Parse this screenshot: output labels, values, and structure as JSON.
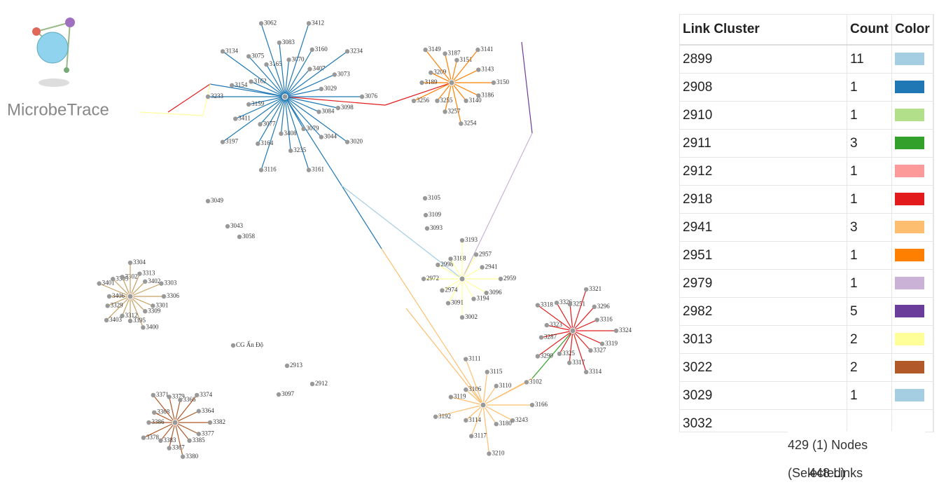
{
  "app": {
    "logo_text": "MicrobeTrace"
  },
  "network": {
    "clusters": [
      {
        "color": "#1f78b4",
        "nodes": [
          "3076",
          "3098",
          "3084",
          "3020",
          "3044",
          "3079",
          "3161",
          "3235",
          "3408",
          "3116",
          "3164",
          "3077",
          "3197",
          "3411",
          "3159",
          "3233",
          "3154",
          "3162",
          "3134",
          "3075",
          "3165",
          "3062",
          "3083",
          "3070",
          "3412",
          "3160",
          "3407",
          "3234",
          "3073",
          "3029"
        ]
      },
      {
        "color": "#ff7f00",
        "nodes": [
          "3150",
          "3186",
          "3140",
          "3254",
          "3257",
          "3255",
          "3256",
          "3189",
          "3209",
          "3149",
          "3187",
          "3151",
          "3141",
          "3143"
        ]
      },
      {
        "color": "#ffff99",
        "nodes": [
          "2959",
          "3096",
          "3194",
          "3002",
          "3091",
          "2974",
          "2972",
          "2998",
          "3188",
          "3193",
          "2957",
          "2941"
        ]
      },
      {
        "color": "#e31a1c",
        "nodes": [
          "3324",
          "3319",
          "3327",
          "3314",
          "3317",
          "3325",
          "3290",
          "3287",
          "3323",
          "3318",
          "3326",
          "3251",
          "3321",
          "3296",
          "3316"
        ]
      },
      {
        "color": "#c8a064",
        "nodes": [
          "3306",
          "3301",
          "3309",
          "3400",
          "3395",
          "3312",
          "3403",
          "3329",
          "3406",
          "3401",
          "3305",
          "3302",
          "3304",
          "3313",
          "3402",
          "3303"
        ]
      },
      {
        "color": "#b15928",
        "nodes": [
          "3382",
          "3377",
          "3385",
          "3380",
          "3367",
          "3383",
          "3378",
          "3386",
          "3368",
          "3371",
          "3379",
          "3366",
          "3374",
          "3364"
        ]
      },
      {
        "color": "#fdbf6f",
        "nodes": [
          "3166",
          "3243",
          "3180",
          "3210",
          "3117",
          "3114",
          "3192",
          "3119",
          "3106",
          "3111",
          "3115",
          "3110",
          "3102"
        ]
      }
    ],
    "labels": [
      "CG Ấn Độ",
      "3049",
      "3043",
      "3058",
      "2913",
      "2912",
      "3097",
      "3105",
      "3109",
      "3093"
    ]
  },
  "table": {
    "headers": [
      "Link Cluster",
      "Count",
      "Color"
    ],
    "rows": [
      {
        "cluster": "2899",
        "count": 11,
        "color": "#a6cee3"
      },
      {
        "cluster": "2908",
        "count": 1,
        "color": "#1f78b4"
      },
      {
        "cluster": "2910",
        "count": 1,
        "color": "#b2df8a"
      },
      {
        "cluster": "2911",
        "count": 3,
        "color": "#33a02c"
      },
      {
        "cluster": "2912",
        "count": 1,
        "color": "#fb9a99"
      },
      {
        "cluster": "2918",
        "count": 1,
        "color": "#e31a1c"
      },
      {
        "cluster": "2941",
        "count": 3,
        "color": "#fdbf6f"
      },
      {
        "cluster": "2951",
        "count": 1,
        "color": "#ff7f00"
      },
      {
        "cluster": "2979",
        "count": 1,
        "color": "#cab2d6"
      },
      {
        "cluster": "2982",
        "count": 5,
        "color": "#6a3d9a"
      },
      {
        "cluster": "3013",
        "count": 2,
        "color": "#ffff99"
      },
      {
        "cluster": "3022",
        "count": 2,
        "color": "#b15928"
      },
      {
        "cluster": "3029",
        "count": 1,
        "color": "#a6cee3"
      },
      {
        "cluster": "3032"
      }
    ]
  },
  "status": {
    "nodes_value": "429 (1)",
    "nodes_label": "Nodes (Selected)",
    "links_value": "448",
    "links_label": "Links"
  }
}
